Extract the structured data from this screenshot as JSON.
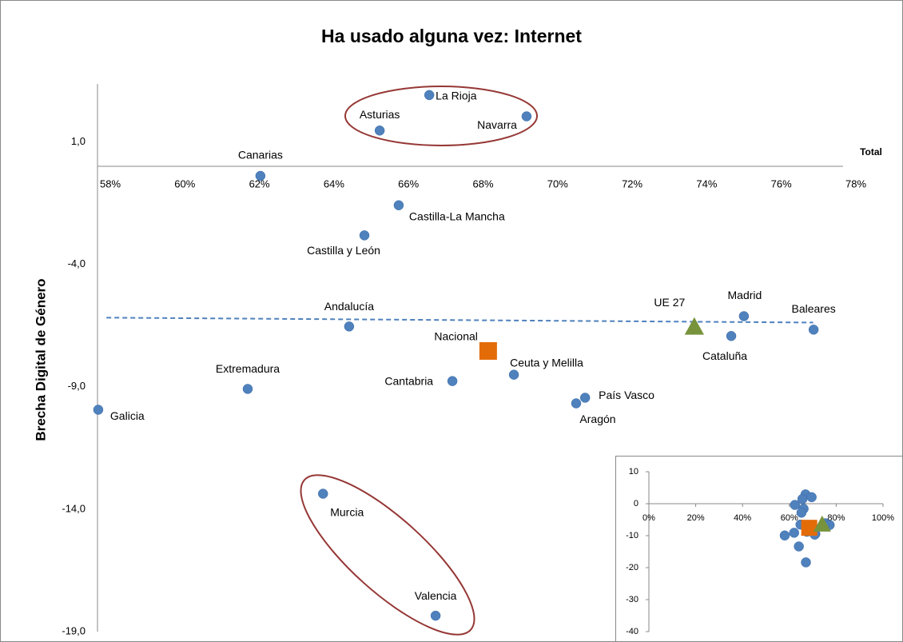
{
  "chart_data": [
    {
      "type": "scatter",
      "title": "Ha usado alguna vez: Internet",
      "x_label": "Total",
      "y_label": "Brecha Digital de Género",
      "xlim": [
        58,
        78
      ],
      "ylim": [
        -19,
        3.2
      ],
      "xticks": [
        {
          "value": 58,
          "label": "58%"
        },
        {
          "value": 60,
          "label": "60%"
        },
        {
          "value": 62,
          "label": "62%"
        },
        {
          "value": 64,
          "label": "64%"
        },
        {
          "value": 66,
          "label": "66%"
        },
        {
          "value": 68,
          "label": "68%"
        },
        {
          "value": 70,
          "label": "70%"
        },
        {
          "value": 72,
          "label": "72%"
        },
        {
          "value": 74,
          "label": "74%"
        },
        {
          "value": 76,
          "label": "76%"
        },
        {
          "value": 78,
          "label": "78%"
        }
      ],
      "yticks": [
        {
          "value": 1,
          "label": "1,0"
        },
        {
          "value": -4,
          "label": "-4,0"
        },
        {
          "value": -9,
          "label": "-9,0"
        },
        {
          "value": -14,
          "label": "-14,0"
        },
        {
          "value": -19,
          "label": "-19,0"
        }
      ],
      "series": [
        {
          "color": "#4f81bd",
          "marker": "circle",
          "labels": [
            "La Rioja",
            "Asturias",
            "Navarra",
            "Canarias",
            "Castilla-La Mancha",
            "Castilla y León",
            "Andalucía",
            "Madrid",
            "Baleares",
            "Cataluña",
            "Ceuta y Melilla",
            "Cantabria",
            "Extremadura",
            "País Vasco",
            "Aragón",
            "Galicia",
            "Murcia",
            "Valencia"
          ],
          "x": [
            66.9,
            65.57,
            69.51,
            62.37,
            66.08,
            65.16,
            64.75,
            75.34,
            77.21,
            75.0,
            69.17,
            67.52,
            62.03,
            71.08,
            70.84,
            58.02,
            64.05,
            67.07
          ],
          "y": [
            2.91,
            1.46,
            2.04,
            -0.39,
            -1.59,
            -2.82,
            -6.54,
            -6.12,
            -6.67,
            -6.93,
            -8.51,
            -8.77,
            -9.09,
            -9.45,
            -9.68,
            -9.94,
            -13.37,
            -18.35
          ]
        },
        {
          "color": "#e36c09",
          "marker": "square",
          "labels": [
            "Nacional"
          ],
          "x": [
            68.48
          ],
          "y": [
            -7.54
          ]
        },
        {
          "color": "#77933c",
          "marker": "triangle",
          "labels": [
            "UE 27"
          ],
          "x": [
            74.01
          ],
          "y": [
            -6.57
          ]
        }
      ],
      "trendline": {
        "color": "#4f81bd",
        "x": [
          58.24,
          77.2
        ],
        "y": [
          -6.18,
          -6.38
        ]
      }
    },
    {
      "type": "scatter",
      "xlim": [
        0,
        100
      ],
      "ylim": [
        -40,
        10
      ],
      "xticks": [
        {
          "value": 0,
          "label": "0%"
        },
        {
          "value": 20,
          "label": "20%"
        },
        {
          "value": 40,
          "label": "40%"
        },
        {
          "value": 60,
          "label": "60%"
        },
        {
          "value": 80,
          "label": "80%"
        },
        {
          "value": 100,
          "label": "100%"
        }
      ],
      "yticks": [
        10,
        0,
        -10,
        -20,
        -30,
        -40
      ]
    }
  ]
}
